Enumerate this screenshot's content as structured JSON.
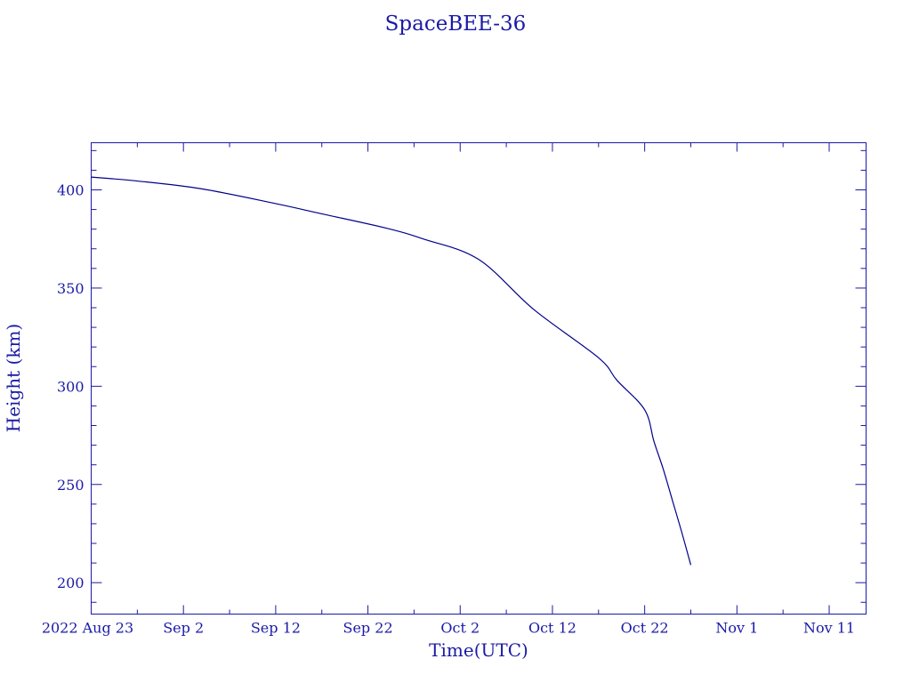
{
  "chart_data": {
    "type": "line",
    "title": "SpaceBEE-36",
    "xlabel": "Time(UTC)",
    "ylabel": "Height (km)",
    "xlim": [
      "2022-08-23",
      "2022-11-15"
    ],
    "ylim": [
      184,
      424
    ],
    "x_ticks": [
      {
        "date": "2022-08-23",
        "label": "2022 Aug 23"
      },
      {
        "date": "2022-09-02",
        "label": "Sep  2"
      },
      {
        "date": "2022-09-12",
        "label": "Sep 12"
      },
      {
        "date": "2022-09-22",
        "label": "Sep 22"
      },
      {
        "date": "2022-10-02",
        "label": "Oct  2"
      },
      {
        "date": "2022-10-12",
        "label": "Oct 12"
      },
      {
        "date": "2022-10-22",
        "label": "Oct 22"
      },
      {
        "date": "2022-11-01",
        "label": "Nov  1"
      },
      {
        "date": "2022-11-11",
        "label": "Nov 11"
      }
    ],
    "y_ticks": [
      200,
      250,
      300,
      350,
      400
    ],
    "grid": false,
    "line_color": "#00008b",
    "axis_color": "#1a1aa6",
    "series": [
      {
        "x": [
          "2022-08-23",
          "2022-08-28",
          "2022-09-04",
          "2022-09-12",
          "2022-09-17",
          "2022-09-24",
          "2022-09-28",
          "2022-10-04",
          "2022-10-10",
          "2022-10-17",
          "2022-10-19",
          "2022-10-22",
          "2022-10-23",
          "2022-10-24",
          "2022-10-25",
          "2022-10-26",
          "2022-10-27"
        ],
        "y": [
          406.5,
          404.5,
          400.5,
          393,
          387.8,
          380.5,
          375,
          364.6,
          339,
          314.5,
          303,
          288,
          272,
          258,
          242,
          226,
          209
        ]
      }
    ]
  }
}
